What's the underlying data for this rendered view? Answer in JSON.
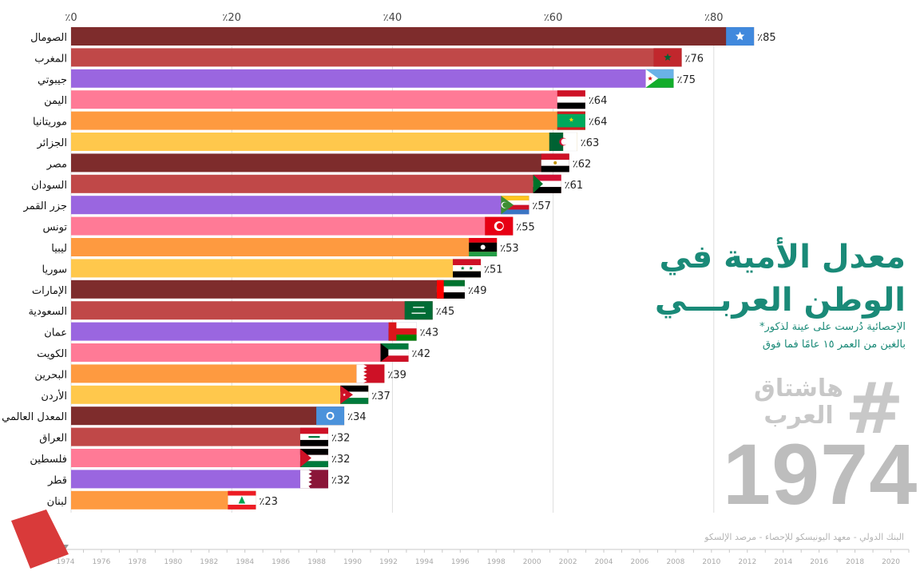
{
  "title_line1": "معدل الأمية في",
  "title_line2": "الوطن العربـــي",
  "note_line1": "*الإحصائية دُرست على عينة لذكور",
  "note_line2": "بالغين من العمر ١٥ عامًا فما فوق",
  "watermark": {
    "symbol": "#",
    "line1": "هاشتاق",
    "line2": "العرب"
  },
  "current_year": "1974",
  "source": "البنك الدولي - معهد اليونيسكو للإحصاء - مرصد الإلسكو",
  "colors": {
    "title": "#1a8a78",
    "grid": "#dddddd",
    "timeline_marker": "#d93a3a"
  },
  "chart_data": {
    "type": "bar",
    "orientation": "horizontal",
    "value_format": "٪{v}",
    "xlim": [
      0,
      100
    ],
    "x_ticks": [
      0,
      20,
      40,
      60,
      80
    ],
    "x_tick_labels": [
      "٪0",
      "٪20",
      "٪40",
      "٪60",
      "٪80"
    ],
    "categories": [
      "الصومال",
      "المغرب",
      "جيبوتي",
      "اليمن",
      "موريتانيا",
      "الجزائر",
      "مصر",
      "السودان",
      "جزر القمر",
      "تونس",
      "ليبيا",
      "سوريا",
      "الإمارات",
      "السعودية",
      "عمان",
      "الكويت",
      "البحرين",
      "الأردن",
      "المعدل العالمي",
      "العراق",
      "فلسطين",
      "قطر",
      "لبنان"
    ],
    "values": [
      85,
      76,
      75,
      64,
      64,
      63,
      62,
      61,
      57,
      55,
      53,
      51,
      49,
      45,
      43,
      42,
      39,
      37,
      34,
      32,
      32,
      32,
      23
    ],
    "bar_colors": [
      "#7e2c2c",
      "#c04848",
      "#9a66e0",
      "#ff7a96",
      "#fe9a40",
      "#ffc84c",
      "#7e2c2c",
      "#c04848",
      "#9a66e0",
      "#ff7a96",
      "#fe9a40",
      "#ffc84c",
      "#7e2c2c",
      "#c04848",
      "#9a66e0",
      "#ff7a96",
      "#fe9a40",
      "#ffc84c",
      "#7e2c2c",
      "#c04848",
      "#ff7a96",
      "#9a66e0",
      "#fe9a40"
    ],
    "flags": [
      "somalia",
      "morocco",
      "djibouti",
      "yemen",
      "mauritania",
      "algeria",
      "egypt",
      "sudan",
      "comoros",
      "tunisia",
      "libya",
      "syria",
      "uae",
      "saudi-arabia",
      "oman",
      "kuwait",
      "bahrain",
      "jordan",
      "united-nations",
      "iraq",
      "palestine",
      "qatar",
      "lebanon"
    ],
    "timeline": {
      "start": 1974,
      "end": 2021,
      "current": 1974,
      "labels": [
        "1974",
        "1976",
        "1978",
        "1980",
        "1982",
        "1984",
        "1986",
        "1988",
        "1990",
        "1992",
        "1994",
        "1996",
        "1998",
        "2000",
        "2002",
        "2004",
        "2006",
        "2008",
        "2010",
        "2012",
        "2014",
        "2016",
        "2018",
        "2020"
      ]
    }
  }
}
